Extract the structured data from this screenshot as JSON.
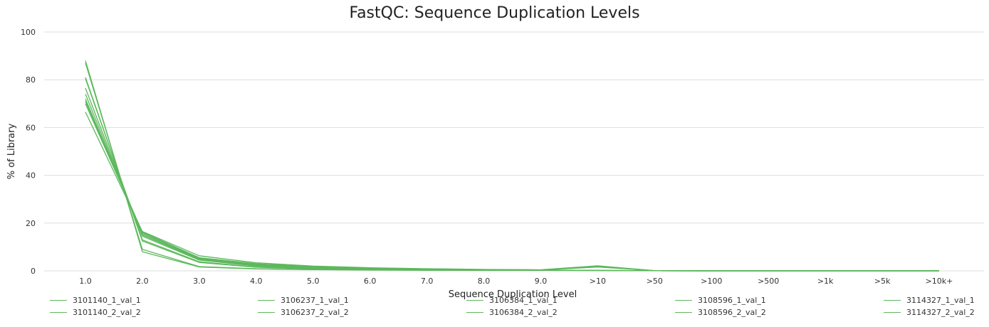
{
  "chart_data": {
    "type": "line",
    "title": "FastQC: Sequence Duplication Levels",
    "xlabel": "Sequence Duplication Level",
    "ylabel": "% of Library",
    "ylim": [
      0,
      100
    ],
    "yticks": [
      0,
      20,
      40,
      60,
      80,
      100
    ],
    "grid": true,
    "legend_position": "bottom",
    "line_color": "#5cb85c",
    "categories": [
      "1.0",
      "2.0",
      "3.0",
      "4.0",
      "5.0",
      "6.0",
      "7.0",
      "8.0",
      "9.0",
      ">10",
      ">50",
      ">100",
      ">500",
      ">1k",
      ">5k",
      ">10k+"
    ],
    "series": [
      {
        "name": "3101140_1_val_1",
        "values": [
          88.0,
          8.0,
          1.6,
          0.8,
          0.5,
          0.35,
          0.25,
          0.2,
          0.2,
          0.1,
          0.05,
          0.0,
          0.0,
          0.0,
          0.0,
          0.0
        ]
      },
      {
        "name": "3101140_2_val_2",
        "values": [
          87.0,
          9.0,
          1.8,
          0.9,
          0.55,
          0.4,
          0.3,
          0.22,
          0.2,
          0.15,
          0.05,
          0.0,
          0.0,
          0.0,
          0.0,
          0.0
        ]
      },
      {
        "name": "3106237_1_val_1",
        "values": [
          81.0,
          12.5,
          3.5,
          1.5,
          0.8,
          0.5,
          0.4,
          0.3,
          0.25,
          0.2,
          0.05,
          0.0,
          0.0,
          0.0,
          0.0,
          0.0
        ]
      },
      {
        "name": "3106237_2_val_2",
        "values": [
          80.5,
          13.0,
          3.8,
          1.6,
          0.85,
          0.55,
          0.4,
          0.3,
          0.25,
          0.2,
          0.05,
          0.0,
          0.0,
          0.0,
          0.0,
          0.0
        ]
      },
      {
        "name": "3106384_1_val_1",
        "values": [
          76.5,
          14.5,
          4.5,
          2.0,
          1.0,
          0.7,
          0.5,
          0.35,
          0.3,
          1.6,
          0.05,
          0.0,
          0.0,
          0.0,
          0.0,
          0.0
        ]
      },
      {
        "name": "3106384_2_val_2",
        "values": [
          74.0,
          15.0,
          4.8,
          2.3,
          1.2,
          0.8,
          0.55,
          0.4,
          0.3,
          1.7,
          0.05,
          0.0,
          0.0,
          0.0,
          0.0,
          0.0
        ]
      },
      {
        "name": "3108596_1_val_1",
        "values": [
          72.0,
          15.5,
          5.0,
          2.6,
          1.4,
          0.9,
          0.6,
          0.45,
          0.35,
          1.8,
          0.05,
          0.0,
          0.0,
          0.0,
          0.0,
          0.0
        ]
      },
      {
        "name": "3108596_2_val_2",
        "values": [
          71.0,
          16.0,
          5.2,
          2.8,
          1.5,
          1.0,
          0.7,
          0.5,
          0.4,
          1.9,
          0.05,
          0.0,
          0.0,
          0.0,
          0.0,
          0.0
        ]
      },
      {
        "name": "3114327_1_val_1",
        "values": [
          70.0,
          16.2,
          5.5,
          3.0,
          1.7,
          1.1,
          0.8,
          0.55,
          0.4,
          2.0,
          0.05,
          0.0,
          0.0,
          0.0,
          0.0,
          0.0
        ]
      },
      {
        "name": "3114327_2_val_2",
        "values": [
          66.5,
          16.5,
          6.3,
          3.4,
          2.0,
          1.3,
          0.9,
          0.6,
          0.45,
          2.1,
          0.05,
          0.0,
          0.0,
          0.0,
          0.0,
          0.0
        ]
      }
    ]
  }
}
